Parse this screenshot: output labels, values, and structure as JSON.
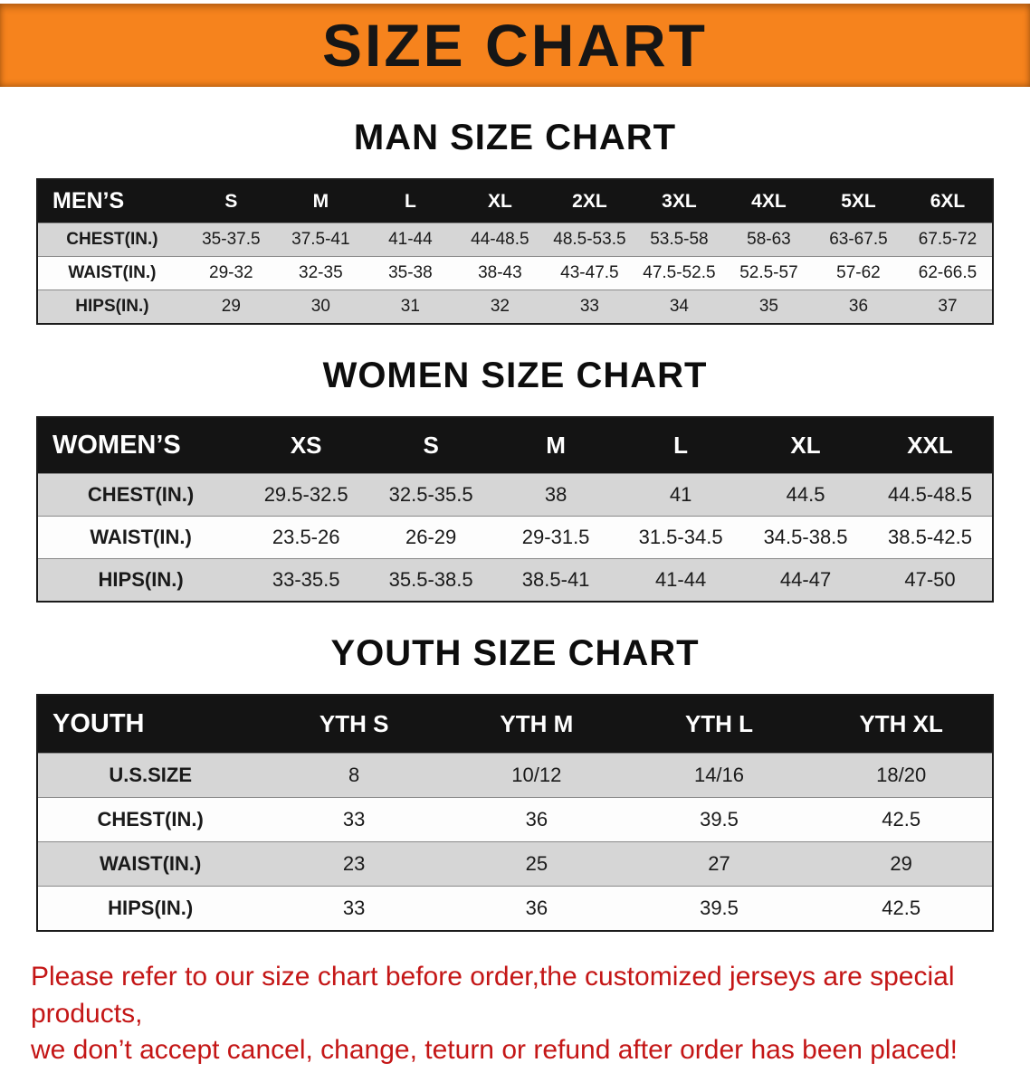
{
  "colors": {
    "banner_bg": "#f6831d",
    "table_header_bg": "#141414",
    "row_stripe": "#d6d6d6",
    "disclaimer_text": "#c41616"
  },
  "banner": {
    "title": "SIZE CHART"
  },
  "sections": [
    {
      "heading": "MAN SIZE CHART",
      "table": {
        "header": [
          "MEN’S",
          "S",
          "M",
          "L",
          "XL",
          "2XL",
          "3XL",
          "4XL",
          "5XL",
          "6XL"
        ],
        "rows": [
          [
            "CHEST(IN.)",
            "35-37.5",
            "37.5-41",
            "41-44",
            "44-48.5",
            "48.5-53.5",
            "53.5-58",
            "58-63",
            "63-67.5",
            "67.5-72"
          ],
          [
            "WAIST(IN.)",
            "29-32",
            "32-35",
            "35-38",
            "38-43",
            "43-47.5",
            "47.5-52.5",
            "52.5-57",
            "57-62",
            "62-66.5"
          ],
          [
            "HIPS(IN.)",
            "29",
            "30",
            "31",
            "32",
            "33",
            "34",
            "35",
            "36",
            "37"
          ]
        ]
      }
    },
    {
      "heading": "WOMEN SIZE CHART",
      "table": {
        "header": [
          "WOMEN’S",
          "XS",
          "S",
          "M",
          "L",
          "XL",
          "XXL"
        ],
        "rows": [
          [
            "CHEST(IN.)",
            "29.5-32.5",
            "32.5-35.5",
            "38",
            "41",
            "44.5",
            "44.5-48.5"
          ],
          [
            "WAIST(IN.)",
            "23.5-26",
            "26-29",
            "29-31.5",
            "31.5-34.5",
            "34.5-38.5",
            "38.5-42.5"
          ],
          [
            "HIPS(IN.)",
            "33-35.5",
            "35.5-38.5",
            "38.5-41",
            "41-44",
            "44-47",
            "47-50"
          ]
        ]
      }
    },
    {
      "heading": "YOUTH SIZE CHART",
      "table": {
        "header": [
          "YOUTH",
          "YTH S",
          "YTH M",
          "YTH L",
          "YTH XL"
        ],
        "rows": [
          [
            "U.S.SIZE",
            "8",
            "10/12",
            "14/16",
            "18/20"
          ],
          [
            "CHEST(IN.)",
            "33",
            "36",
            "39.5",
            "42.5"
          ],
          [
            "WAIST(IN.)",
            "23",
            "25",
            "27",
            "29"
          ],
          [
            "HIPS(IN.)",
            "33",
            "36",
            "39.5",
            "42.5"
          ]
        ]
      }
    }
  ],
  "disclaimer": {
    "line1": "Please refer to our size chart before order,the customized jerseys are special products,",
    "line2": "we don’t accept cancel, change, teturn or refund after order has been placed!"
  }
}
